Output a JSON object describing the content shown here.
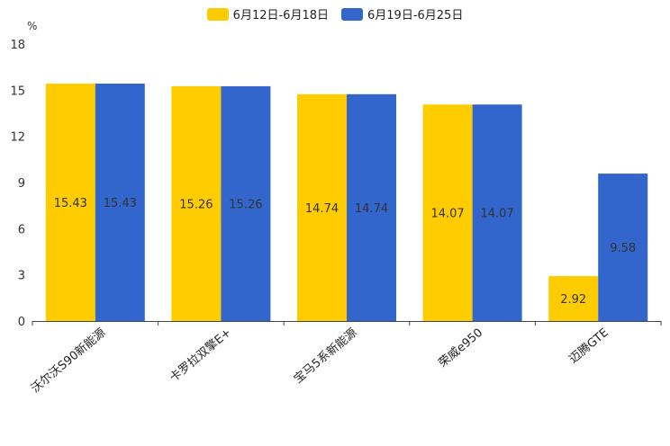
{
  "chart_data": {
    "type": "bar",
    "title": "",
    "ylabel": "%",
    "xlabel": "",
    "ylim": [
      0,
      18
    ],
    "yticks": [
      0,
      3,
      6,
      9,
      12,
      15,
      18
    ],
    "grid": false,
    "legend_position": "top-center",
    "categories": [
      "沃尔沃S90新能源",
      "卡罗拉双擎E+",
      "宝马5系新能源",
      "荣威e950",
      "迈腾GTE"
    ],
    "series": [
      {
        "name": "6月12日-6月18日",
        "color": "#FFCC00",
        "values": [
          15.43,
          15.26,
          14.74,
          14.07,
          2.92
        ]
      },
      {
        "name": "6月19日-6月25日",
        "color": "#3366CC",
        "values": [
          15.43,
          15.26,
          14.74,
          14.07,
          9.58
        ]
      }
    ]
  }
}
